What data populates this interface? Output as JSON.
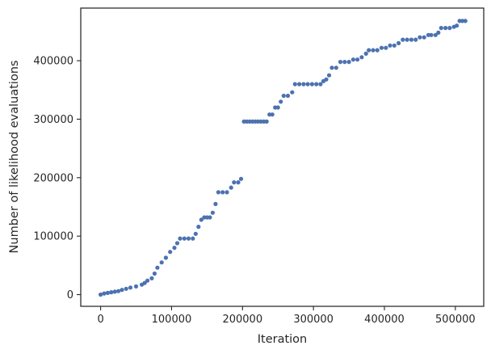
{
  "chart_data": {
    "type": "scatter",
    "title": "",
    "xlabel": "Iteration",
    "ylabel": "Number of likelihood evaluations",
    "xlim": [
      -28000,
      540000
    ],
    "ylim": [
      -20000,
      490000
    ],
    "xticks": [
      0,
      100000,
      200000,
      300000,
      400000,
      500000
    ],
    "xtick_labels": [
      "0",
      "100000",
      "200000",
      "300000",
      "400000",
      "500000"
    ],
    "yticks": [
      0,
      100000,
      200000,
      300000,
      400000
    ],
    "ytick_labels": [
      "0",
      "100000",
      "200000",
      "300000",
      "400000"
    ],
    "grid": false,
    "marker_color": "#4c72b0",
    "steps": [
      [
        0,
        0
      ],
      [
        5000,
        2000
      ],
      [
        10000,
        3000
      ],
      [
        15000,
        4000
      ],
      [
        20000,
        5000
      ],
      [
        25000,
        6000
      ],
      [
        30000,
        8000
      ],
      [
        36000,
        10000
      ],
      [
        42000,
        12000
      ],
      [
        50000,
        14000
      ],
      [
        58000,
        17000
      ],
      [
        62000,
        20000
      ],
      [
        66000,
        24000
      ],
      [
        72000,
        28000
      ],
      [
        76000,
        36000
      ],
      [
        80000,
        46000
      ],
      [
        86000,
        55000
      ],
      [
        92000,
        63000
      ],
      [
        98000,
        73000
      ],
      [
        104000,
        80000
      ],
      [
        108000,
        88000
      ],
      [
        112000,
        96000
      ],
      [
        118000,
        96000
      ],
      [
        124000,
        96000
      ],
      [
        130000,
        96000
      ],
      [
        134000,
        104000
      ],
      [
        138000,
        116000
      ],
      [
        142000,
        128000
      ],
      [
        146000,
        132000
      ],
      [
        150000,
        132000
      ],
      [
        154000,
        132000
      ],
      [
        158000,
        140000
      ],
      [
        162000,
        155000
      ],
      [
        166000,
        175000
      ],
      [
        172000,
        175000
      ],
      [
        178000,
        175000
      ],
      [
        184000,
        183000
      ],
      [
        188000,
        192000
      ],
      [
        194000,
        192000
      ],
      [
        198000,
        198000
      ],
      [
        202000,
        296000
      ],
      [
        206000,
        296000
      ],
      [
        210000,
        296000
      ],
      [
        214000,
        296000
      ],
      [
        218000,
        296000
      ],
      [
        222000,
        296000
      ],
      [
        226000,
        296000
      ],
      [
        230000,
        296000
      ],
      [
        234000,
        296000
      ],
      [
        238000,
        308000
      ],
      [
        242000,
        308000
      ],
      [
        246000,
        320000
      ],
      [
        250000,
        320000
      ],
      [
        254000,
        330000
      ],
      [
        258000,
        340000
      ],
      [
        264000,
        340000
      ],
      [
        270000,
        346000
      ],
      [
        274000,
        360000
      ],
      [
        280000,
        360000
      ],
      [
        286000,
        360000
      ],
      [
        292000,
        360000
      ],
      [
        298000,
        360000
      ],
      [
        304000,
        360000
      ],
      [
        310000,
        360000
      ],
      [
        314000,
        365000
      ],
      [
        318000,
        368000
      ],
      [
        322000,
        375000
      ],
      [
        326000,
        388000
      ],
      [
        332000,
        388000
      ],
      [
        338000,
        398000
      ],
      [
        344000,
        398000
      ],
      [
        350000,
        398000
      ],
      [
        356000,
        402000
      ],
      [
        362000,
        402000
      ],
      [
        368000,
        406000
      ],
      [
        374000,
        412000
      ],
      [
        378000,
        418000
      ],
      [
        384000,
        418000
      ],
      [
        390000,
        418000
      ],
      [
        396000,
        422000
      ],
      [
        402000,
        422000
      ],
      [
        408000,
        426000
      ],
      [
        414000,
        426000
      ],
      [
        420000,
        430000
      ],
      [
        426000,
        436000
      ],
      [
        432000,
        436000
      ],
      [
        438000,
        436000
      ],
      [
        444000,
        436000
      ],
      [
        450000,
        440000
      ],
      [
        456000,
        440000
      ],
      [
        462000,
        444000
      ],
      [
        466000,
        444000
      ],
      [
        472000,
        444000
      ],
      [
        476000,
        448000
      ],
      [
        480000,
        456000
      ],
      [
        486000,
        456000
      ],
      [
        492000,
        456000
      ],
      [
        498000,
        458000
      ],
      [
        502000,
        460000
      ],
      [
        506000,
        468000
      ],
      [
        510000,
        468000
      ],
      [
        514000,
        468000
      ]
    ]
  }
}
